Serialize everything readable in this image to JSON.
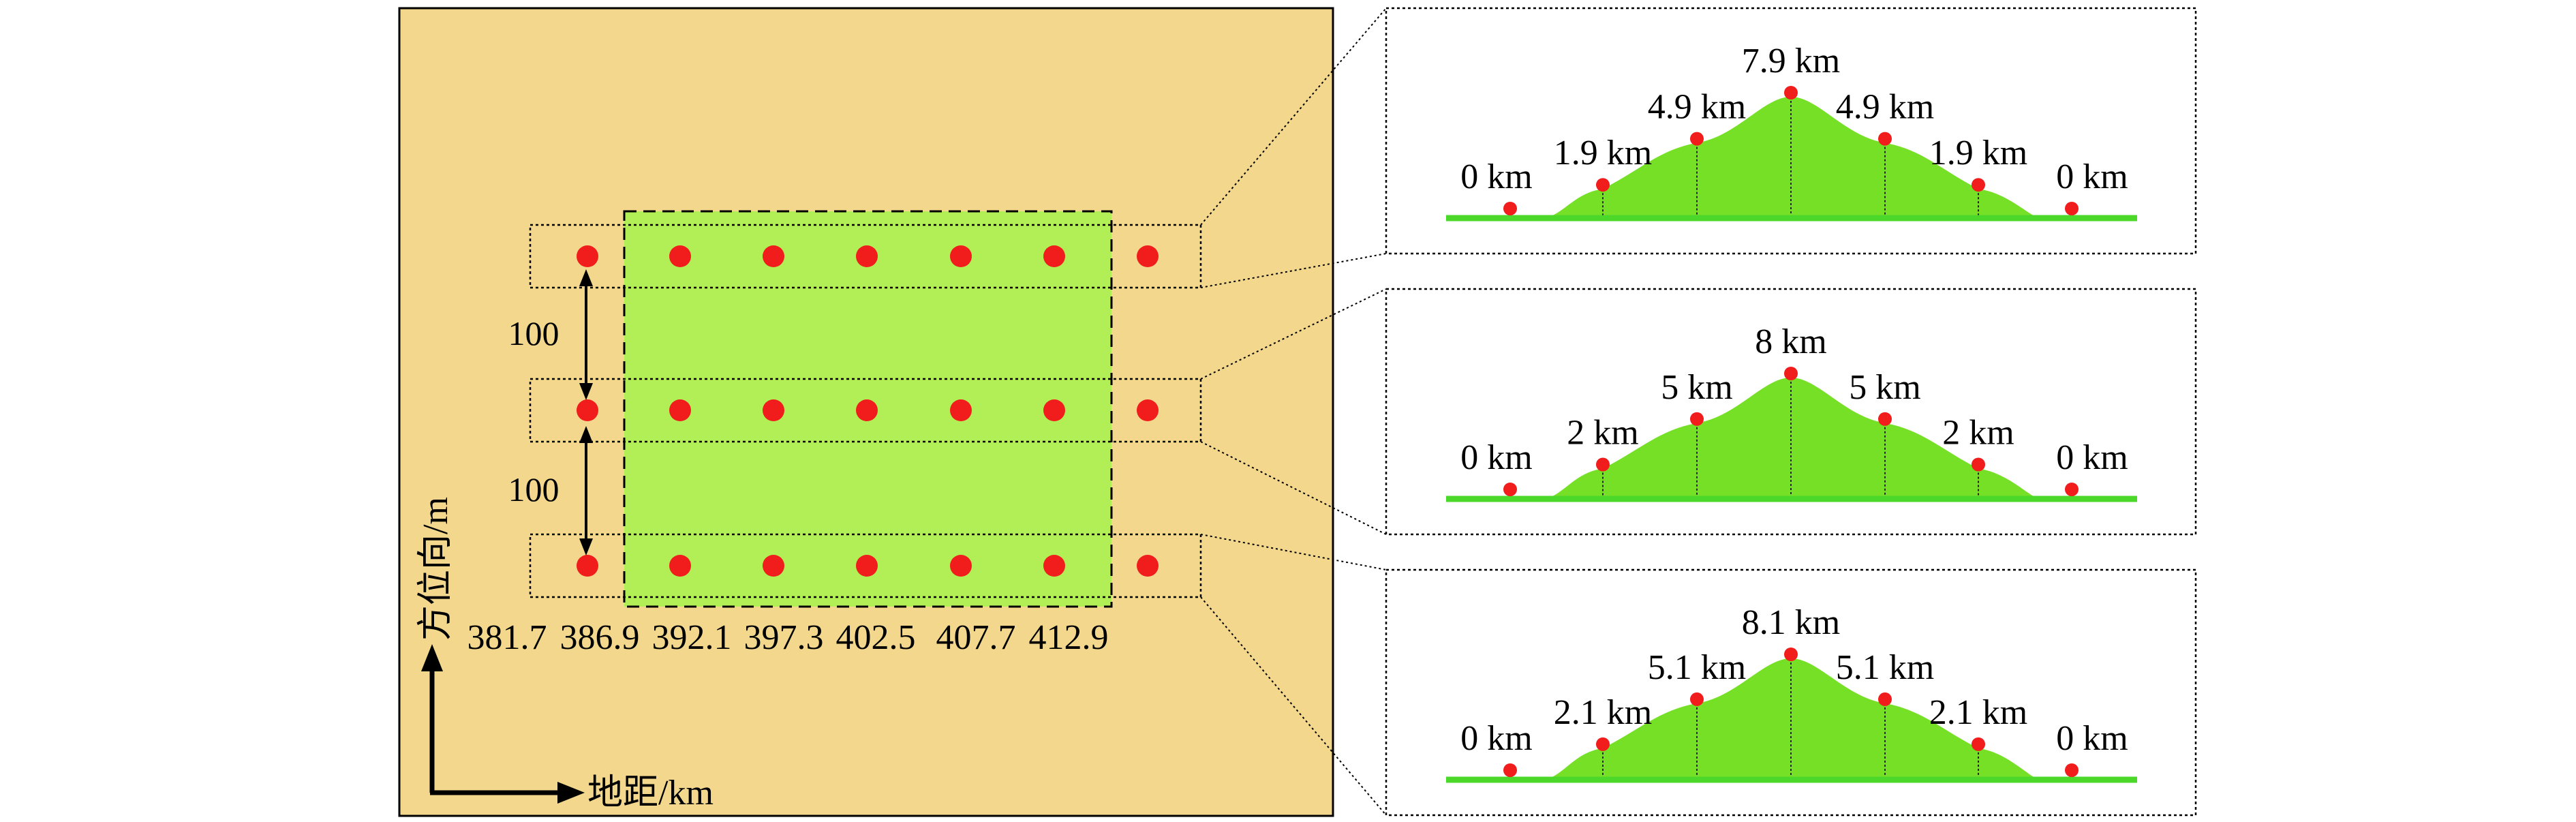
{
  "colors": {
    "map_bg": "#f2d78c",
    "terrain_fill": "#b2ee55",
    "terrain_green": "#76e026",
    "ground_line": "#4cd82a",
    "point": "#f11c1c",
    "border": "#000000"
  },
  "axes": {
    "horizontal_label": "地距/km",
    "vertical_label": "方位向/m",
    "range_ticks": [
      "381.7",
      "386.9",
      "392.1",
      "397.3",
      "402.5",
      "407.7",
      "412.9"
    ],
    "azimuth_spacings": [
      "100",
      "100"
    ]
  },
  "grid": {
    "rows": 3,
    "columns": 7
  },
  "profiles": [
    {
      "height_labels": [
        "0 km",
        "1.9 km",
        "4.9 km",
        "7.9 km",
        "4.9 km",
        "1.9 km",
        "0 km"
      ],
      "heights_km": [
        0,
        1.9,
        4.9,
        7.9,
        4.9,
        1.9,
        0
      ]
    },
    {
      "height_labels": [
        "0 km",
        "2 km",
        "5 km",
        "8 km",
        "5 km",
        "2 km",
        "0 km"
      ],
      "heights_km": [
        0,
        2,
        5,
        8,
        5,
        2,
        0
      ]
    },
    {
      "height_labels": [
        "0 km",
        "2.1 km",
        "5.1 km",
        "8.1 km",
        "5.1 km",
        "2.1 km",
        "0 km"
      ],
      "heights_km": [
        0,
        2.1,
        5.1,
        8.1,
        5.1,
        2.1,
        0
      ]
    }
  ]
}
